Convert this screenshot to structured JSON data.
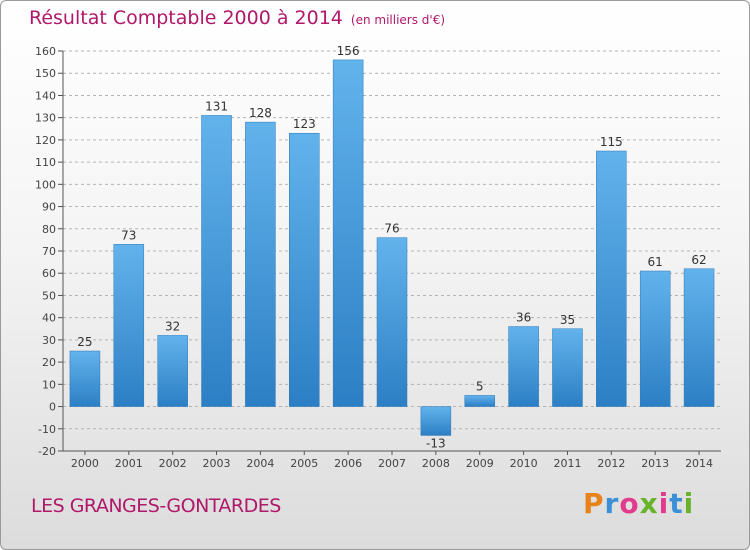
{
  "title": "Résultat Comptable 2000 à 2014",
  "unit": "(en milliers d'€)",
  "commune": "LES GRANGES-GONTARDES",
  "logo": {
    "text": "Proxiti",
    "colors": [
      "#e8831c",
      "#3a8fd6",
      "#e23a8c",
      "#69b32b",
      "#e23a8c",
      "#3a8fd6",
      "#69b32b"
    ]
  },
  "colors": {
    "title": "#b0186a",
    "bar_top": "#62b3ec",
    "bar_bottom": "#2c7fc4"
  },
  "chart_data": {
    "type": "bar",
    "title": "Résultat Comptable 2000 à 2014",
    "ylabel": "en milliers d'€",
    "xlabel": "",
    "categories": [
      "2000",
      "2001",
      "2002",
      "2003",
      "2004",
      "2005",
      "2006",
      "2007",
      "2008",
      "2009",
      "2010",
      "2011",
      "2012",
      "2013",
      "2014"
    ],
    "values": [
      25,
      73,
      32,
      131,
      128,
      123,
      156,
      76,
      -13,
      5,
      36,
      35,
      115,
      61,
      62
    ],
    "ylim": [
      -20,
      160
    ],
    "yticks": [
      -20,
      -10,
      0,
      10,
      20,
      30,
      40,
      50,
      60,
      70,
      80,
      90,
      100,
      110,
      120,
      130,
      140,
      150,
      160
    ],
    "grid": true
  }
}
